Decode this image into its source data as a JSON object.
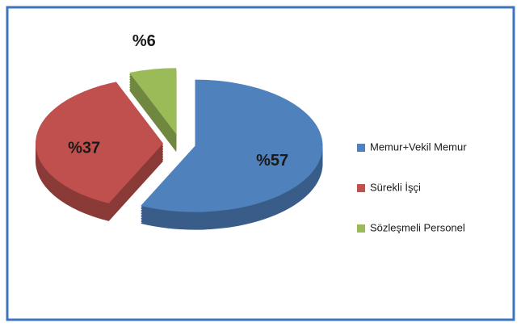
{
  "chart_data": {
    "type": "pie",
    "categories": [
      "Memur+Vekil Memur",
      "Sürekli İşçi",
      "Sözleşmeli Personel"
    ],
    "values": [
      57,
      37,
      6
    ],
    "value_labels": [
      "%57",
      "%37",
      "%6"
    ],
    "colors": [
      "#4f81bd",
      "#c0504d",
      "#9bbb59"
    ],
    "legend": "right"
  }
}
